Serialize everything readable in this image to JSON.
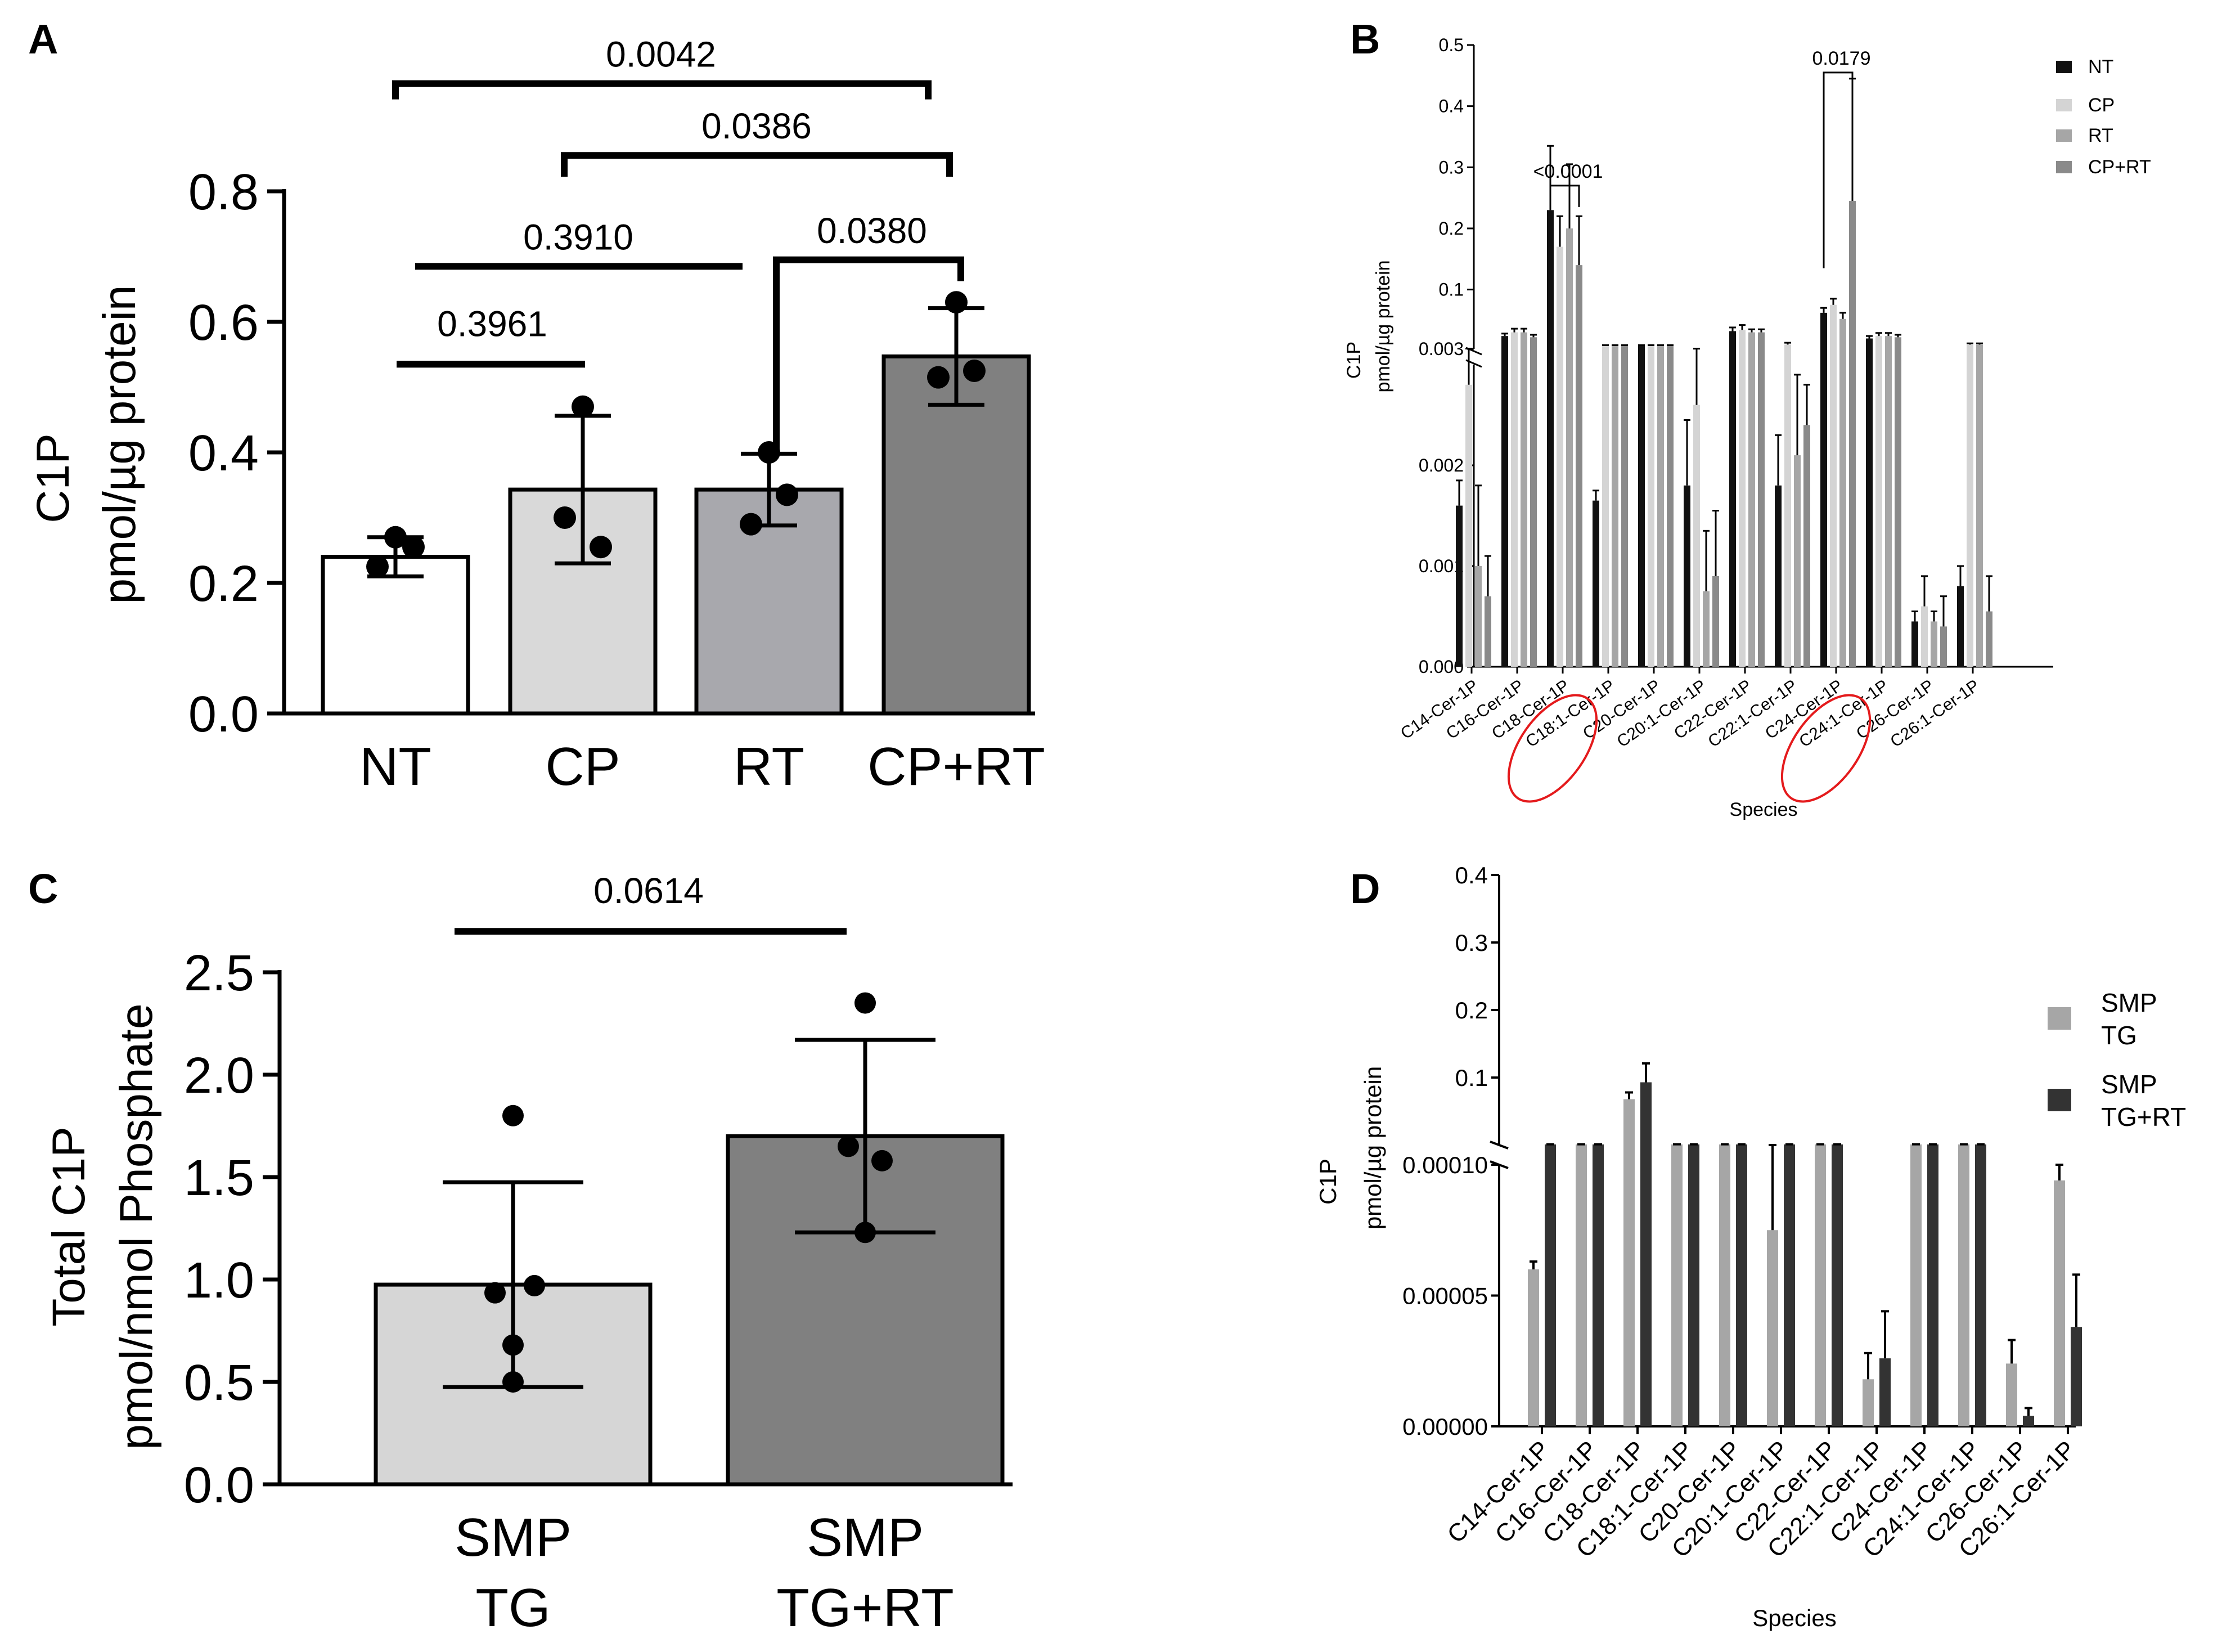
{
  "chart_data": [
    {
      "panel": "A",
      "type": "bar",
      "ylabel": "C1P",
      "ylabel2": "pmol/µg protein",
      "categories": [
        "NT",
        "CP",
        "RT",
        "CP+RT"
      ],
      "values": [
        0.24,
        0.343,
        0.343,
        0.547
      ],
      "errors": [
        0.03,
        0.113,
        0.055,
        0.074
      ],
      "points": [
        [
          0.27,
          0.225,
          0.255
        ],
        [
          0.47,
          0.3,
          0.255
        ],
        [
          0.4,
          0.29,
          0.335
        ],
        [
          0.63,
          0.515,
          0.525
        ]
      ],
      "colors": [
        "#ffffff",
        "#d9d9d9",
        "#a8a8ad",
        "#808080"
      ],
      "ylim": [
        0,
        0.8
      ],
      "yticks": [
        "0.0",
        "0.2",
        "0.4",
        "0.6",
        "0.8"
      ],
      "comparisons": [
        {
          "label": "0.0042",
          "from": 0,
          "to": 3,
          "y": 0.965
        },
        {
          "label": "0.0386",
          "from": 1,
          "to": 3,
          "y": 0.855
        },
        {
          "label": "0.3910",
          "from": 0,
          "to": 2,
          "y": 0.685
        },
        {
          "label": "0.0380",
          "from": 2,
          "to": 3,
          "y": 0.695
        },
        {
          "label": "0.3961",
          "from": 0,
          "to": 1,
          "y": 0.535
        }
      ]
    },
    {
      "panel": "B",
      "type": "bar",
      "ylabel": "C1P",
      "ylabel2": "pmol/µg protein",
      "xlabel": "Species",
      "categories": [
        "C14-Cer-1P",
        "C16-Cer-1P",
        "C18-Cer-1P",
        "C18:1-Cer-1P",
        "C20-Cer-1P",
        "C20:1-Cer-1P",
        "C22-Cer-1P",
        "C22:1-Cer-1P",
        "C24-Cer-1P",
        "C24:1-Cer-1P",
        "C26-Cer-1P",
        "C26:1-Cer-1P"
      ],
      "highlighted": [
        "C18-Cer-1P",
        "C24-Cer-1P"
      ],
      "series": [
        {
          "name": "NT",
          "color": "#111111",
          "values": [
            0.0016,
            0.024,
            0.23,
            0.00165,
            0.008,
            0.0018,
            0.032,
            0.0018,
            0.062,
            0.02,
            0.00045,
            0.0008
          ]
        },
        {
          "name": "CP",
          "color": "#d4d4d4",
          "values": [
            0.0028,
            0.03,
            0.17,
            0.008,
            0.008,
            0.0026,
            0.034,
            0.01,
            0.075,
            0.024,
            0.0006,
            0.01
          ]
        },
        {
          "name": "RT",
          "color": "#a6a6a6",
          "values": [
            0.001,
            0.03,
            0.2,
            0.008,
            0.008,
            0.00075,
            0.03,
            0.0021,
            0.052,
            0.024,
            0.00045,
            0.01
          ]
        },
        {
          "name": "CP+RT",
          "color": "#8a8a8a",
          "values": [
            0.0007,
            0.022,
            0.14,
            0.008,
            0.008,
            0.0009,
            0.03,
            0.0024,
            0.245,
            0.022,
            0.0004,
            0.00055
          ]
        }
      ],
      "errors": [
        [
          0.00025,
          0.004,
          0.105,
          0.0001,
          0.001,
          0.00065,
          0.006,
          0.0005,
          0.008,
          0.004,
          0.0001,
          0.0002
        ],
        [
          0.0006,
          0.006,
          0.05,
          0.001,
          0.001,
          0.0007,
          0.008,
          0.003,
          0.01,
          0.005,
          0.0003,
          0.002
        ],
        [
          0.0008,
          0.006,
          0.105,
          0.001,
          0.001,
          0.0006,
          0.005,
          0.0008,
          0.01,
          0.005,
          0.0001,
          0.002
        ],
        [
          0.0004,
          0.004,
          0.08,
          0.001,
          0.001,
          0.00065,
          0.005,
          0.0004,
          0.2,
          0.004,
          0.0003,
          0.00035
        ]
      ],
      "axis_lower": {
        "range": [
          0,
          0.003
        ],
        "ticks": [
          "0.000",
          "0.001",
          "0.002",
          "0.003"
        ]
      },
      "axis_upper": {
        "range": [
          0.003,
          0.5
        ],
        "ticks": [
          "0.1",
          "0.2",
          "0.3",
          "0.4",
          "0.5"
        ]
      },
      "comparisons": [
        {
          "label": "<0.0001",
          "category": 2,
          "from_series": 0,
          "to_series": 3,
          "y": 0.27
        },
        {
          "label": "0.0179",
          "category": 8,
          "from_series": 0,
          "to_series": 3,
          "y": 0.455
        }
      ],
      "legend_position": "top-right"
    },
    {
      "panel": "C",
      "type": "bar",
      "ylabel": "Total C1P",
      "ylabel2": "pmol/nmol Phosphate",
      "categories": [
        [
          "SMP",
          "TG"
        ],
        [
          "SMP",
          "TG+RT"
        ]
      ],
      "values": [
        0.975,
        1.7
      ],
      "errors": [
        0.5,
        0.47
      ],
      "points": [
        [
          1.8,
          0.935,
          0.97,
          0.68,
          0.5
        ],
        [
          2.35,
          1.65,
          1.58,
          1.23
        ]
      ],
      "colors": [
        "#d6d6d6",
        "#808080"
      ],
      "ylim": [
        0,
        2.5
      ],
      "yticks": [
        "0.0",
        "0.5",
        "1.0",
        "1.5",
        "2.0",
        "2.5"
      ],
      "comparisons": [
        {
          "label": "0.0614",
          "from": 0,
          "to": 1,
          "y": 2.7
        }
      ]
    },
    {
      "panel": "D",
      "type": "bar",
      "ylabel": "C1P",
      "ylabel2": "pmol/µg protein",
      "xlabel": "Species",
      "categories": [
        "C14-Cer-1P",
        "C16-Cer-1P",
        "C18-Cer-1P",
        "C18:1-Cer-1P",
        "C20-Cer-1P",
        "C20:1-Cer-1P",
        "C22-Cer-1P",
        "C22:1-Cer-1P",
        "C24-Cer-1P",
        "C24:1-Cer-1P",
        "C26-Cer-1P",
        "C26:1-Cer-1P"
      ],
      "series": [
        {
          "name": "SMP TG",
          "legend": [
            "SMP",
            "TG"
          ],
          "color": "#a6a6a6",
          "values": [
            6e-05,
            0.001,
            0.068,
            0.001,
            0.001,
            7.5e-05,
            0.001,
            1.8e-05,
            0.001,
            0.001,
            2.4e-05,
            9.4e-05
          ]
        },
        {
          "name": "SMP TG+RT",
          "legend": [
            "SMP",
            "TG+RT"
          ],
          "color": "#333333",
          "values": [
            0.001,
            0.001,
            0.093,
            0.001,
            0.001,
            0.001,
            0.001,
            2.6e-05,
            0.001,
            0.001,
            4e-06,
            3.8e-05
          ]
        }
      ],
      "errors": [
        [
          3e-06,
          0.0002,
          0.01,
          0.0002,
          0.0002,
          2.8e-05,
          0.0002,
          1e-05,
          0.0002,
          0.0002,
          9e-06,
          6e-06
        ],
        [
          0.0002,
          0.0002,
          0.028,
          0.0002,
          0.0002,
          0.0002,
          0.0002,
          1.8e-05,
          0.0002,
          0.0002,
          3e-06,
          2e-05
        ]
      ],
      "axis_lower": {
        "range": [
          0,
          0.0001
        ],
        "ticks": [
          "0.00000",
          "0.00005",
          "0.00010"
        ]
      },
      "axis_upper": {
        "range": [
          0.0001,
          0.4
        ],
        "ticks": [
          "0.1",
          "0.2",
          "0.3",
          "0.4"
        ]
      },
      "legend_position": "right"
    }
  ]
}
